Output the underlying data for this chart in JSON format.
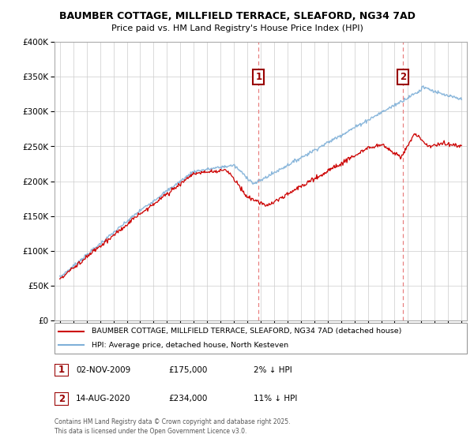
{
  "title": "BAUMBER COTTAGE, MILLFIELD TERRACE, SLEAFORD, NG34 7AD",
  "subtitle": "Price paid vs. HM Land Registry's House Price Index (HPI)",
  "ylim": [
    0,
    400000
  ],
  "yticks": [
    0,
    50000,
    100000,
    150000,
    200000,
    250000,
    300000,
    350000,
    400000
  ],
  "ytick_labels": [
    "£0",
    "£50K",
    "£100K",
    "£150K",
    "£200K",
    "£250K",
    "£300K",
    "£350K",
    "£400K"
  ],
  "xlim_start": 1994.6,
  "xlim_end": 2025.4,
  "transaction1": {
    "num": 1,
    "date": "02-NOV-2009",
    "x": 2009.84,
    "price": 175000,
    "label": "2% ↓ HPI"
  },
  "transaction2": {
    "num": 2,
    "date": "14-AUG-2020",
    "x": 2020.62,
    "price": 234000,
    "label": "11% ↓ HPI"
  },
  "line_red_color": "#cc0000",
  "line_blue_color": "#7fb0d8",
  "legend_red_label": "BAUMBER COTTAGE, MILLFIELD TERRACE, SLEAFORD, NG34 7AD (detached house)",
  "legend_blue_label": "HPI: Average price, detached house, North Kesteven",
  "footer1": "Contains HM Land Registry data © Crown copyright and database right 2025.",
  "footer2": "This data is licensed under the Open Government Licence v3.0.",
  "background_color": "#ffffff",
  "grid_color": "#cccccc",
  "vline_color": "#e88080"
}
